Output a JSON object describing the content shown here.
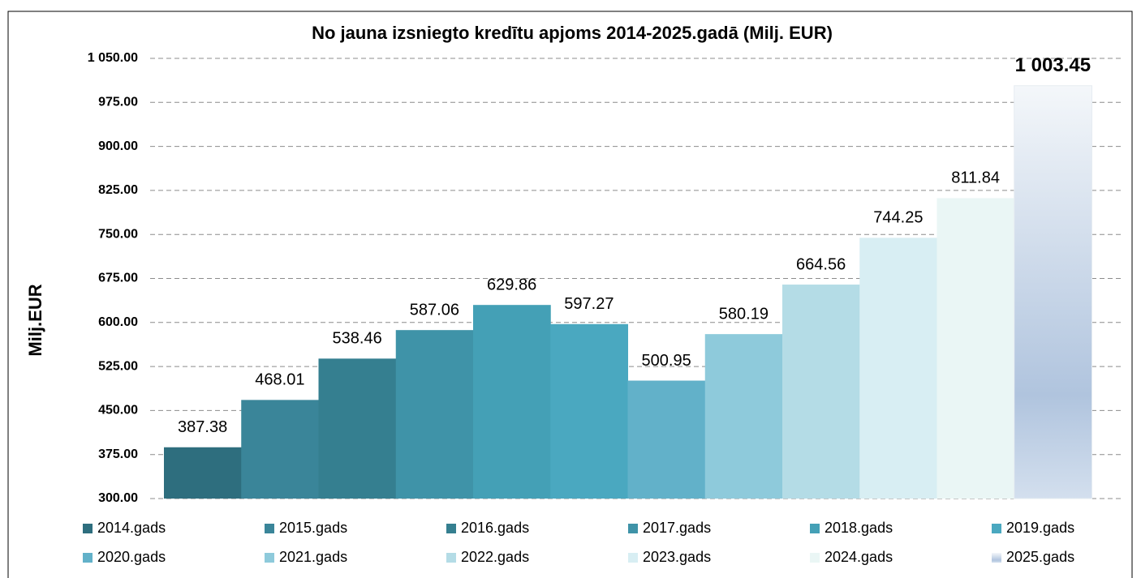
{
  "chart_data": {
    "type": "bar",
    "title": "No jauna izsniegto kredītu apjoms 2014-2025.gadā (Milj. EUR)",
    "y_label": "Milj.EUR",
    "categories": [
      "2014.gads",
      "2015.gads",
      "2016.gads",
      "2017.gads",
      "2018.gads",
      "2019.gads",
      "2020.gads",
      "2021.gads",
      "2022.gads",
      "2023.gads",
      "2024.gads",
      "2025.gads"
    ],
    "values": [
      387.38,
      468.01,
      538.46,
      587.06,
      629.86,
      597.27,
      500.95,
      580.19,
      664.56,
      744.25,
      811.84,
      1003.45
    ],
    "value_labels": [
      "387.38",
      "468.01",
      "538.46",
      "587.06",
      "629.86",
      "597.27",
      "500.95",
      "580.19",
      "664.56",
      "744.25",
      "811.84",
      "1 003.45"
    ],
    "colors": [
      "#2e6e7e",
      "#3a8599",
      "#357f90",
      "#3f93a8",
      "#44a0b6",
      "#4aa8c0",
      "#62b1c9",
      "#8ecadb",
      "#b4dce6",
      "#d8eef3",
      "#eaf6f5",
      "#b0c4de"
    ],
    "ylim": [
      300,
      1050
    ],
    "yticks": [
      {
        "value": 300,
        "label": "300.00"
      },
      {
        "value": 375,
        "label": "375.00"
      },
      {
        "value": 450,
        "label": "450.00"
      },
      {
        "value": 525,
        "label": "525.00"
      },
      {
        "value": 600,
        "label": "600.00"
      },
      {
        "value": 675,
        "label": "675.00"
      },
      {
        "value": 750,
        "label": "750.00"
      },
      {
        "value": 825,
        "label": "825.00"
      },
      {
        "value": 900,
        "label": "900.00"
      },
      {
        "value": 975,
        "label": "975.00"
      },
      {
        "value": 1050,
        "label": "1 050.00"
      }
    ],
    "grid": true,
    "legend": "bottom"
  }
}
